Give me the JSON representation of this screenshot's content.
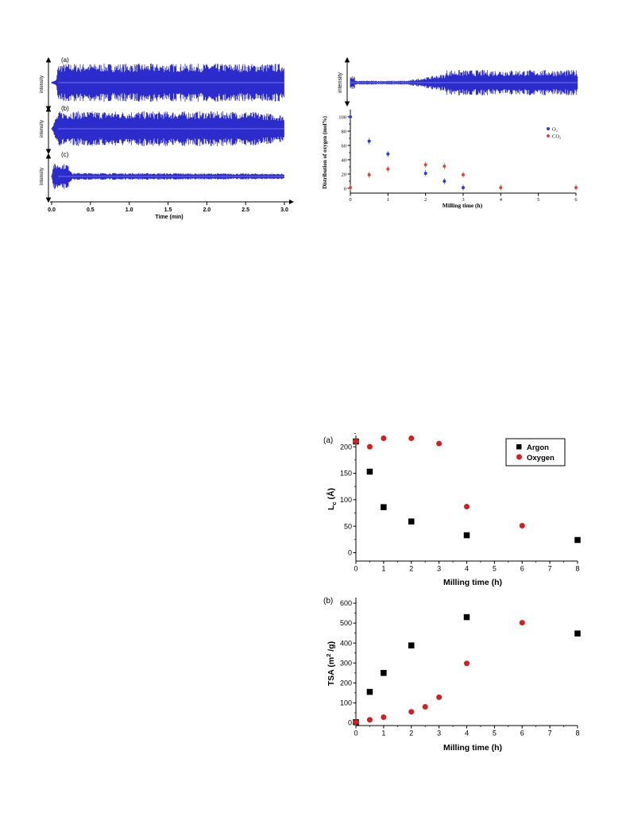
{
  "colors": {
    "signal": "#2c2ccc",
    "signal_core": "#7a7af0",
    "o2": "#2b3ccf",
    "co2": "#d9483b",
    "argon": "#000000",
    "oxygen": "#d41f1f",
    "axis": "#000000"
  },
  "chart_data": [
    {
      "id": "sound_left",
      "type": "area",
      "description_free": true,
      "panels": [
        {
          "label": "(a)",
          "ylabel": "intensity",
          "profile": [
            [
              0,
              0.05
            ],
            [
              0.06,
              0.15
            ],
            [
              0.08,
              0.9
            ],
            [
              0.12,
              1
            ],
            [
              3.0,
              1
            ]
          ]
        },
        {
          "label": "(b)",
          "ylabel": "intensity",
          "profile": [
            [
              0,
              0.05
            ],
            [
              0.05,
              0.6
            ],
            [
              0.1,
              1
            ],
            [
              2.5,
              1
            ],
            [
              3.0,
              0.8
            ]
          ]
        },
        {
          "label": "(c)",
          "ylabel": "intensity",
          "profile": [
            [
              0,
              0.1
            ],
            [
              0.02,
              0.9
            ],
            [
              0.2,
              0.9
            ],
            [
              0.27,
              0.25
            ],
            [
              3.0,
              0.2
            ]
          ]
        }
      ],
      "xlabel": "Time (min)",
      "x_ticks": [
        "0.0",
        "0.5",
        "1.0",
        "1.5",
        "2.0",
        "2.5",
        "3.0"
      ],
      "xlim": [
        0,
        3.0
      ]
    },
    {
      "id": "oxygen_distribution",
      "type": "scatter",
      "top_strip": {
        "ylabel": "intensity"
      },
      "xlabel": "Milling time (h)",
      "ylabel": "Distribution of oxygen (mol%)",
      "x_ticks": [
        "0",
        "1",
        "2",
        "3",
        "4",
        "5",
        "6"
      ],
      "y_ticks": [
        "0",
        "20",
        "40",
        "60",
        "80",
        "100"
      ],
      "xlim": [
        0,
        6
      ],
      "ylim": [
        0,
        100
      ],
      "legend_position": "top-right",
      "series": [
        {
          "name": "O₂",
          "x": [
            0,
            0.5,
            1,
            2,
            2.5,
            3
          ],
          "y": [
            100,
            66,
            48,
            21,
            10,
            1
          ]
        },
        {
          "name": "CO₂",
          "x": [
            0,
            0.5,
            1,
            2,
            2.5,
            3,
            4,
            6
          ],
          "y": [
            1,
            19,
            27,
            33,
            31,
            19,
            1,
            1
          ]
        }
      ]
    },
    {
      "id": "lc_panel",
      "type": "scatter",
      "panel_label": "(a)",
      "xlabel": "Milling time (h)",
      "ylabel": "L",
      "ylabel_sub": "c",
      "ylabel_unit": " (Å)",
      "x_ticks": [
        "0",
        "1",
        "2",
        "3",
        "4",
        "5",
        "6",
        "7",
        "8"
      ],
      "y_ticks": [
        "0",
        "50",
        "100",
        "150",
        "200"
      ],
      "xlim": [
        0,
        8
      ],
      "ylim": [
        0,
        210
      ],
      "legend_position": "top-right",
      "series": [
        {
          "name": "Argon",
          "x": [
            0,
            0.5,
            1,
            2,
            4,
            8
          ],
          "y": [
            210,
            153,
            86,
            59,
            33,
            24
          ]
        },
        {
          "name": "Oxygen",
          "x": [
            0,
            0.5,
            1,
            2,
            3,
            4,
            6
          ],
          "y": [
            210,
            200,
            216,
            216,
            206,
            87,
            51
          ]
        }
      ]
    },
    {
      "id": "tsa_panel",
      "type": "scatter",
      "panel_label": "(b)",
      "xlabel": "Milling time (h)",
      "ylabel": "TSA (m",
      "ylabel_sup": "2",
      "ylabel_unit": " /g)",
      "x_ticks": [
        "0",
        "1",
        "2",
        "3",
        "4",
        "5",
        "6",
        "7",
        "8"
      ],
      "y_ticks": [
        "0",
        "100",
        "200",
        "300",
        "400",
        "500",
        "600"
      ],
      "xlim": [
        0,
        8
      ],
      "ylim": [
        0,
        600
      ],
      "series": [
        {
          "name": "Argon",
          "x": [
            0,
            0.5,
            1,
            2,
            4,
            8
          ],
          "y": [
            3,
            155,
            250,
            388,
            530,
            448
          ]
        },
        {
          "name": "Oxygen",
          "x": [
            0,
            0.5,
            1,
            2,
            2.5,
            3,
            4,
            6
          ],
          "y": [
            3,
            15,
            28,
            55,
            80,
            128,
            298,
            502
          ]
        }
      ]
    }
  ]
}
